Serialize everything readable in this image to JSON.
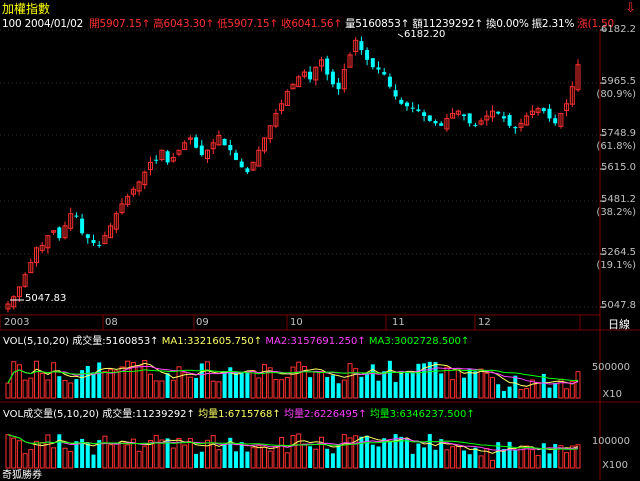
{
  "title": "加權指數",
  "info": {
    "seg_prefix": "100 2004/01/02 ",
    "open": "開5907.15↑",
    "high": "高6043.30↑",
    "low": "低5907.15↑",
    "close": "收6041.56↑",
    "volume": "量5160853↑",
    "amount": "額11239292↑",
    "turnover": "換0.00%",
    "amplitude": "振2.31%",
    "change": "漲(1.50"
  },
  "colors": {
    "up": "#ff3030",
    "down": "#00ffff",
    "title": "#ffff00",
    "ma1": "#ffff66",
    "ma2": "#ff40ff",
    "ma3": "#00ff00",
    "grid": "#7a0000"
  },
  "price_axis": {
    "labels": [
      "6182.2",
      "5965.5",
      "(80.9%)",
      "5748.9",
      "(61.8%)",
      "5615.0",
      "5481.2",
      "(38.2%)",
      "5264.5",
      "(19.1%)",
      "5047.8"
    ]
  },
  "annotations": {
    "high": "6182.20",
    "low": "5047.83"
  },
  "x_axis": {
    "labels": [
      "2003",
      "08",
      "09",
      "10",
      "11",
      "12"
    ],
    "period": "日線"
  },
  "vol_panel": {
    "prefix": "VOL(5,10,20)",
    "current": "成交量:5160853↑",
    "ma1": "MA1:3321605.750↑",
    "ma2": "MA2:3157691.250↑",
    "ma3": "MA3:3002728.500↑",
    "axis_top": "500000",
    "axis_unit": "X10"
  },
  "amt_panel": {
    "prefix": "VOL成交量(5,10,20)",
    "current": "成交量:11239292↑",
    "ma1": "均量1:6715768↑",
    "ma2": "均量2:6226495↑",
    "ma3": "均量3:6346237.500↑",
    "axis_top": "100000",
    "axis_unit": "X100"
  },
  "footer": "奇狐勝券",
  "chart_data": {
    "type": "candlestick",
    "ylim": [
      5047.8,
      6182.2
    ],
    "close_series": [
      5060,
      5090,
      5130,
      5180,
      5230,
      5290,
      5300,
      5340,
      5360,
      5330,
      5380,
      5430,
      5420,
      5350,
      5330,
      5310,
      5300,
      5340,
      5380,
      5430,
      5470,
      5500,
      5530,
      5560,
      5600,
      5640,
      5650,
      5690,
      5640,
      5660,
      5690,
      5720,
      5740,
      5700,
      5670,
      5690,
      5720,
      5750,
      5710,
      5690,
      5650,
      5620,
      5600,
      5640,
      5690,
      5740,
      5790,
      5840,
      5880,
      5930,
      5960,
      5990,
      6010,
      5980,
      6030,
      6060,
      6000,
      5960,
      5940,
      6020,
      6080,
      6140,
      6100,
      6060,
      6030,
      6020,
      6000,
      5950,
      5910,
      5880,
      5870,
      5860,
      5850,
      5830,
      5810,
      5800,
      5790,
      5820,
      5840,
      5850,
      5830,
      5800,
      5790,
      5810,
      5830,
      5850,
      5840,
      5820,
      5790,
      5780,
      5800,
      5830,
      5850,
      5860,
      5850,
      5820,
      5800,
      5840,
      5880,
      5950,
      6040
    ]
  }
}
